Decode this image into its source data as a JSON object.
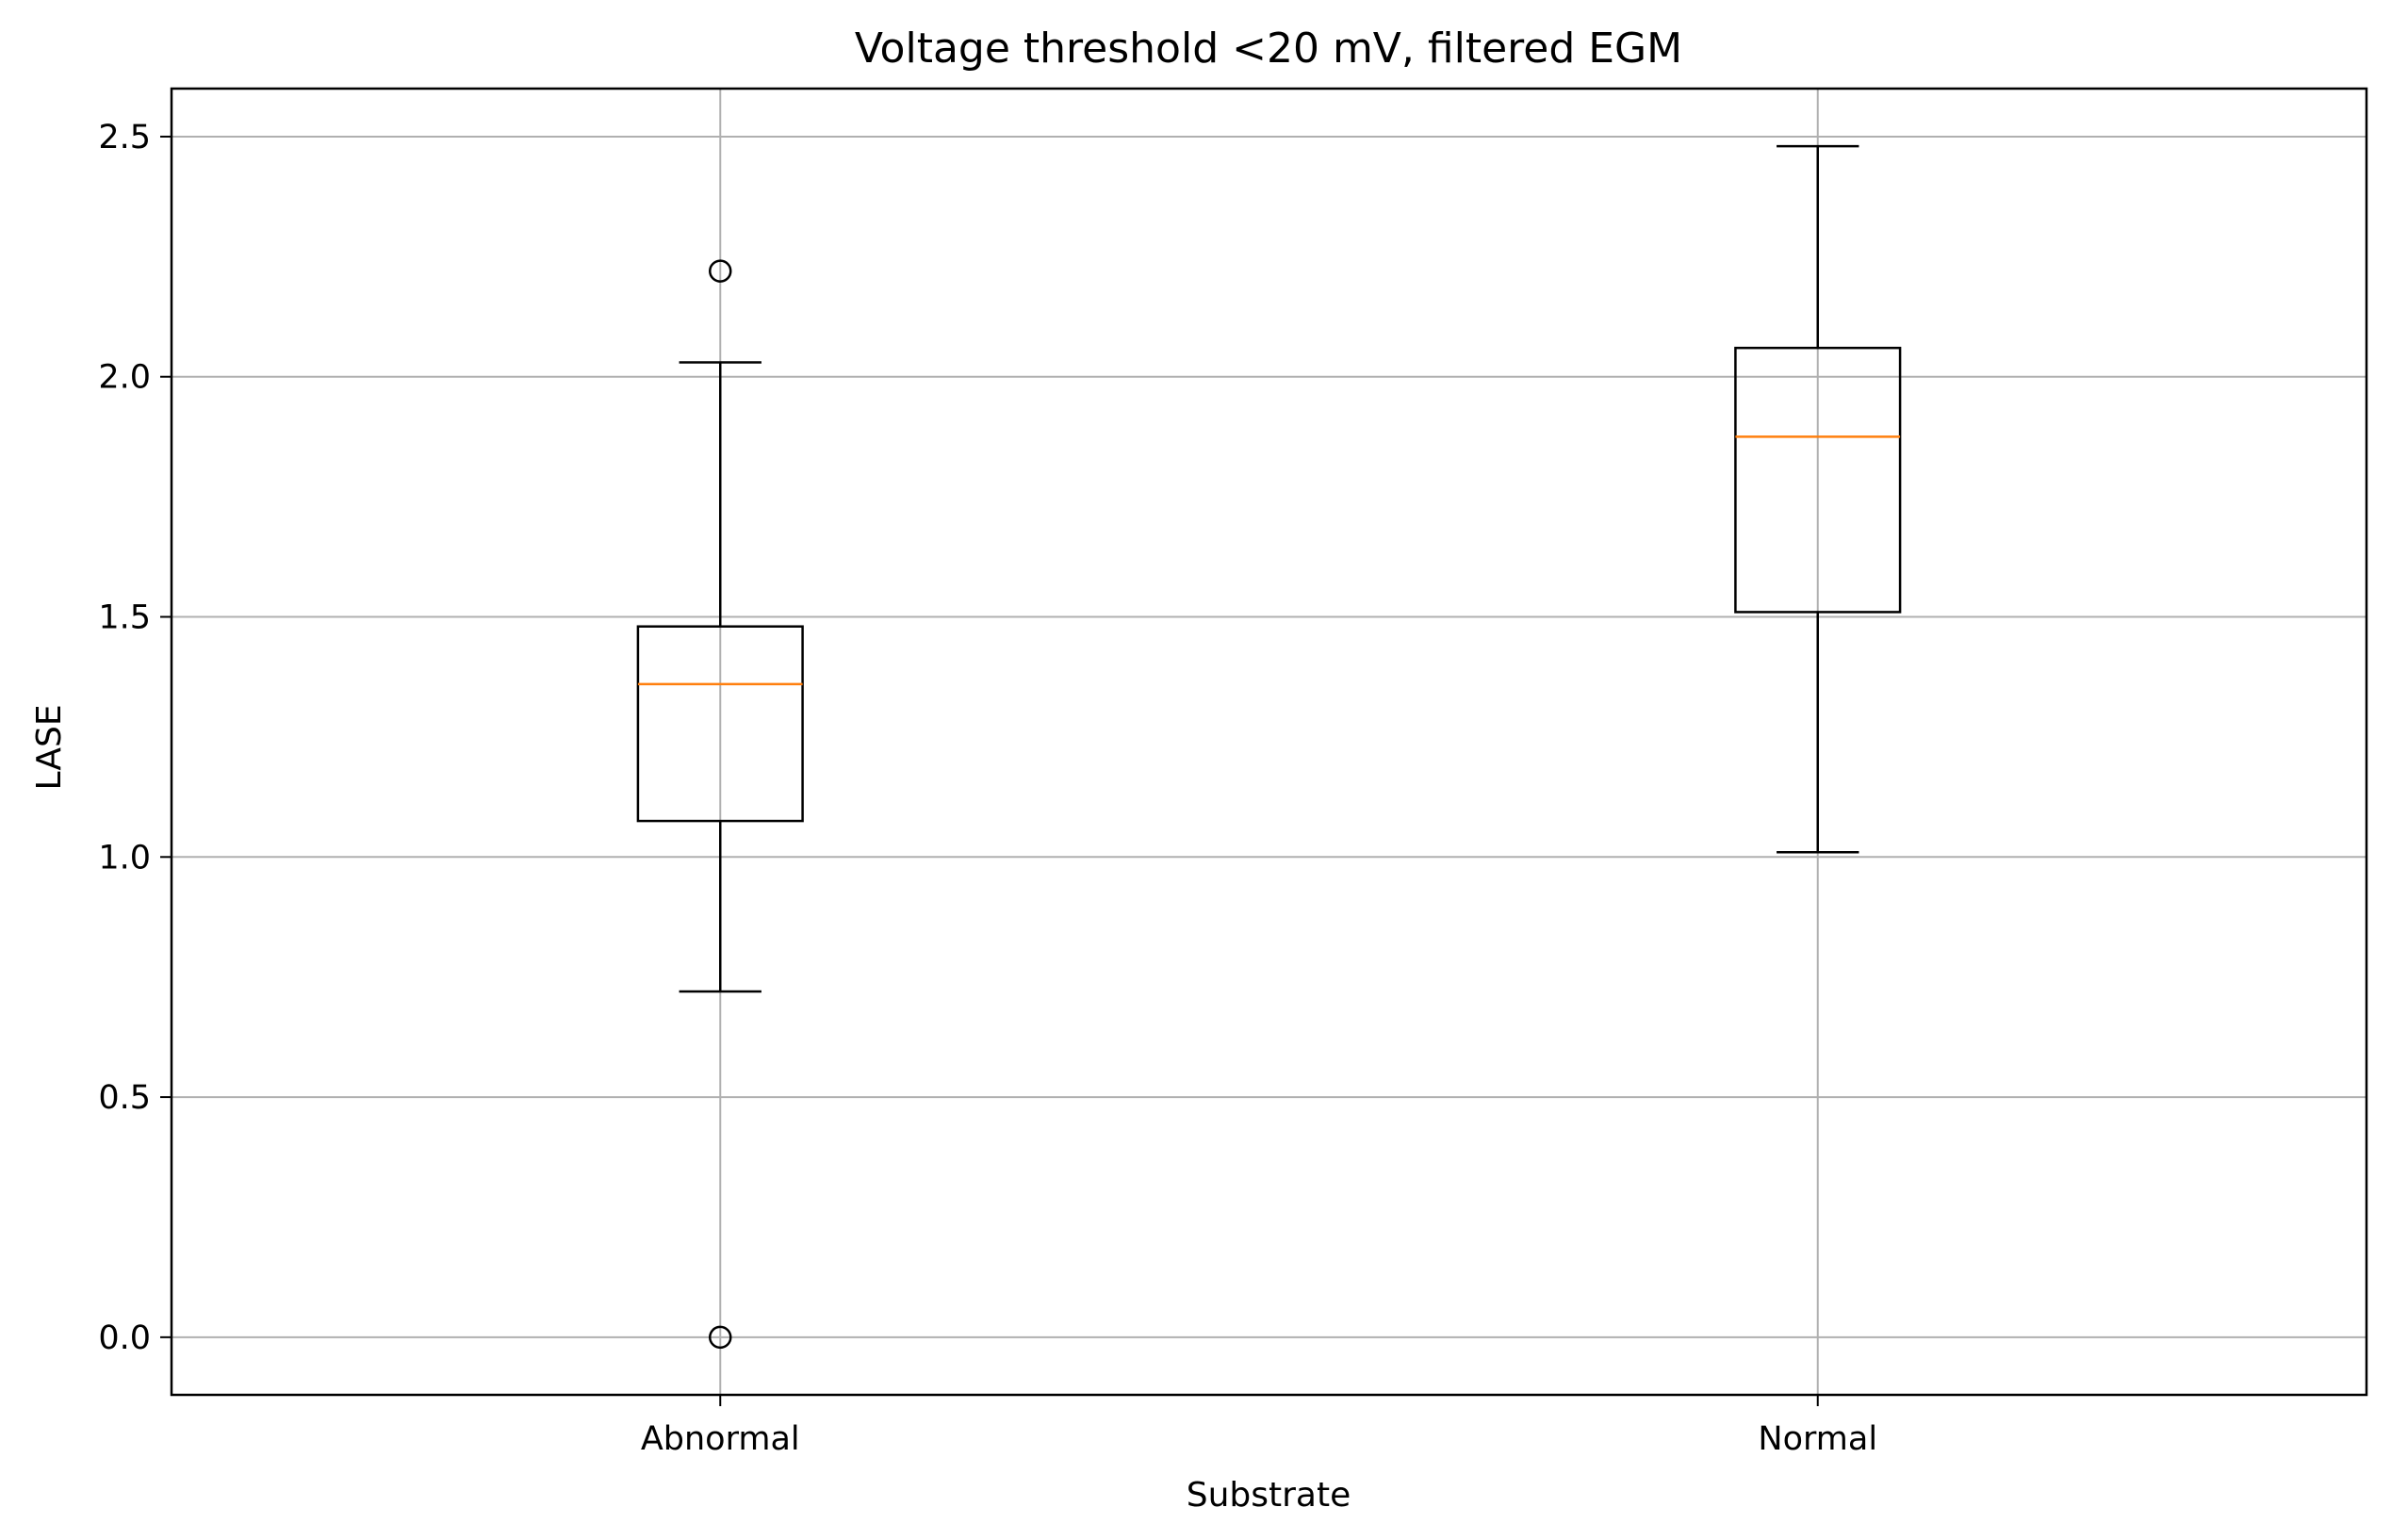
{
  "chart_data": {
    "type": "box",
    "title": "Voltage threshold <20 mV, filtered EGM",
    "xlabel": "Substrate",
    "ylabel": "LASE",
    "categories": [
      "Abnormal",
      "Normal"
    ],
    "ylim": [
      -0.12,
      2.6
    ],
    "yticks": [
      0.0,
      0.5,
      1.0,
      1.5,
      2.0,
      2.5
    ],
    "ytick_labels": [
      "0.0",
      "0.5",
      "1.0",
      "1.5",
      "2.0",
      "2.5"
    ],
    "grid": true,
    "series": [
      {
        "category": "Abnormal",
        "whisker_low": 0.72,
        "q1": 1.075,
        "median": 1.36,
        "q3": 1.48,
        "whisker_high": 2.03,
        "outliers": [
          2.22,
          0.0
        ]
      },
      {
        "category": "Normal",
        "whisker_low": 1.01,
        "q1": 1.51,
        "median": 1.875,
        "q3": 2.06,
        "whisker_high": 2.48,
        "outliers": []
      }
    ],
    "colors": {
      "box": "#000000",
      "median": "#ff7f0e",
      "grid": "#b0b0b0"
    }
  }
}
